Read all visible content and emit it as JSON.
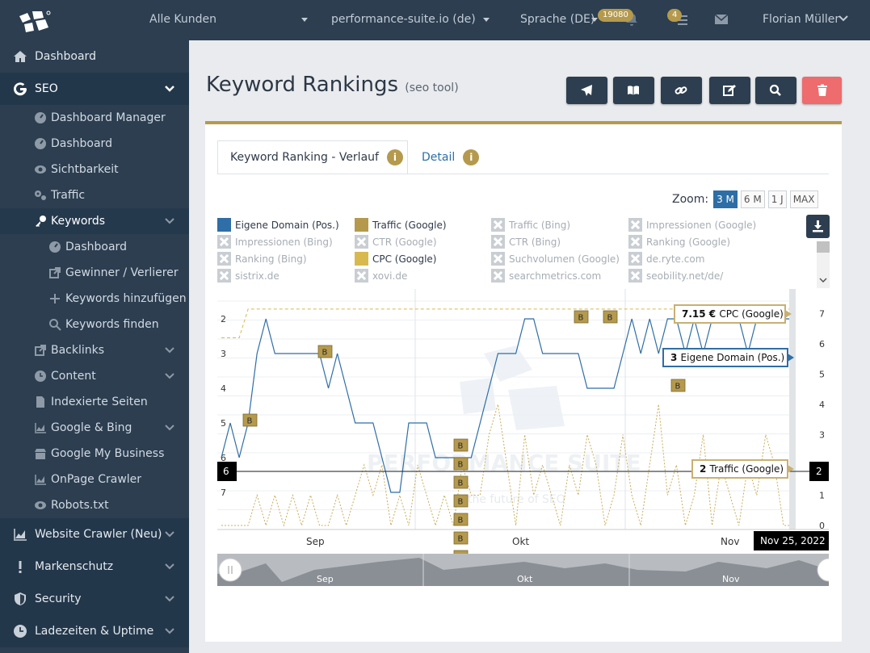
{
  "topbar": {
    "customer_select": "Alle Kunden",
    "project_select": "performance-suite.io (de)",
    "language": "Sprache (DE)",
    "notif_count": "19080",
    "tasks_count": "4",
    "user": "Florian Müller"
  },
  "sidebar": {
    "dashboard": "Dashboard",
    "seo": "SEO",
    "seo_items": [
      "Dashboard Manager",
      "Dashboard",
      "Sichtbarkeit",
      "Traffic",
      "Keywords"
    ],
    "keywords_items": [
      "Dashboard",
      "Gewinner / Verlierer",
      "Keywords hinzufügen",
      "Keywords finden"
    ],
    "more_items": [
      "Backlinks",
      "Content",
      "Indexierte Seiten",
      "Google & Bing",
      "Google My Business",
      "OnPage Crawler",
      "Robots.txt"
    ],
    "sections": [
      "Website Crawler (Neu)",
      "Markenschutz",
      "Security",
      "Ladezeiten & Uptime"
    ]
  },
  "page": {
    "title": "Keyword Rankings",
    "subtitle": "(seo tool)"
  },
  "tabs": {
    "verlauf": "Keyword Ranking - Verlauf",
    "detail": "Detail",
    "info": "i"
  },
  "zoom": {
    "label": "Zoom:",
    "options": [
      "3 M",
      "6 M",
      "1 J",
      "MAX"
    ],
    "selected": "3 M"
  },
  "legend": [
    {
      "label": "Eigene Domain (Pos.)",
      "enabled": true,
      "color": "#2f6ea6"
    },
    {
      "label": "Traffic (Google)",
      "enabled": true,
      "color": "#b59a4d"
    },
    {
      "label": "Traffic (Bing)",
      "enabled": false
    },
    {
      "label": "Impressionen (Google)",
      "enabled": false
    },
    {
      "label": "Impressionen (Bing)",
      "enabled": false
    },
    {
      "label": "CTR (Google)",
      "enabled": false
    },
    {
      "label": "CTR (Bing)",
      "enabled": false
    },
    {
      "label": "Ranking (Google)",
      "enabled": false
    },
    {
      "label": "Ranking (Bing)",
      "enabled": false
    },
    {
      "label": "CPC (Google)",
      "enabled": true,
      "color": "#d8b94e"
    },
    {
      "label": "Suchvolumen (Google)",
      "enabled": false
    },
    {
      "label": "de.ryte.com",
      "enabled": false
    },
    {
      "label": "sistrix.de",
      "enabled": false
    },
    {
      "label": "xovi.de",
      "enabled": false
    },
    {
      "label": "searchmetrics.com",
      "enabled": false
    },
    {
      "label": "seobility.net/de/",
      "enabled": false
    }
  ],
  "chart_data": {
    "type": "line",
    "x_labels": [
      "Sep",
      "Okt",
      "Nov"
    ],
    "left_axis": {
      "ticks": [
        "2",
        "3",
        "4",
        "5",
        "6",
        "7"
      ],
      "reversed": true
    },
    "right_axis": {
      "ticks": [
        "0",
        "1",
        "2",
        "3",
        "4",
        "5",
        "6",
        "7"
      ]
    },
    "series": [
      {
        "name": "Eigene Domain (Pos.)",
        "values": [
          6,
          5,
          6,
          5,
          3,
          2,
          3,
          3,
          3,
          3,
          3,
          3,
          4,
          3,
          4,
          5,
          5,
          5,
          6,
          7,
          7,
          5,
          5,
          5,
          6,
          6,
          6,
          6,
          6,
          5,
          4,
          3,
          3,
          3,
          2,
          2,
          3,
          3,
          3,
          3,
          3,
          4,
          4,
          4,
          4,
          3,
          2,
          3,
          2,
          3,
          2,
          2,
          3,
          2,
          3,
          2,
          2,
          2,
          2,
          3,
          2,
          2,
          2,
          2,
          2
        ]
      },
      {
        "name": "Traffic (Google)",
        "values": [
          0,
          0,
          0,
          0,
          1,
          0,
          1,
          0,
          1,
          0,
          1,
          0,
          0,
          1,
          0,
          1,
          2,
          1,
          2,
          0,
          1,
          0,
          2,
          1,
          0,
          1,
          0,
          2,
          1,
          1,
          3,
          4,
          2,
          0,
          3,
          1,
          2,
          1,
          0,
          2,
          1,
          3,
          2,
          0,
          1,
          3,
          1,
          0,
          2,
          4,
          1,
          2,
          0,
          1,
          3,
          0,
          2,
          1,
          0,
          2,
          1,
          3,
          2,
          0,
          0
        ]
      },
      {
        "name": "CPC (Google)",
        "values": [
          6.2,
          6.2,
          6.2,
          7.15,
          7.15,
          7.15,
          7.15,
          7.15,
          7.15,
          7.15,
          7.15,
          7.15,
          7.15,
          7.15,
          7.15,
          7.15,
          7.15,
          7.15,
          7.15,
          7.15,
          7.15,
          7.15,
          7.15,
          7.15,
          7.15,
          7.15,
          7.15,
          7.15,
          7.15,
          7.15,
          7.15,
          7.15,
          7.15,
          7.15,
          7.15,
          7.15,
          7.15,
          7.15,
          7.15,
          7.15,
          7.15,
          7.15,
          7.15,
          7.15,
          7.15,
          7.15,
          7.15,
          7.15,
          7.15,
          7.15,
          7.15,
          7.15,
          7.15,
          7.15,
          7.15,
          7.15,
          7.15,
          7.15,
          7.15,
          7.15,
          7.15,
          7.15,
          7.15,
          7.15,
          7.15
        ]
      }
    ],
    "tooltips": {
      "cpc": {
        "value": "7.15 €",
        "label": "CPC (Google)"
      },
      "domain": {
        "value": "3",
        "label": "Eigene Domain (Pos.)"
      },
      "traffic": {
        "value": "2",
        "label": "Traffic (Google)"
      }
    },
    "crosshair": {
      "left_value": "6",
      "right_value": "2",
      "date": "Nov 25, 2022"
    },
    "watermark": {
      "brand": "Performance Suite",
      "tagline": "the future of SEO"
    },
    "flag_label": "B"
  },
  "navigator": {
    "labels": [
      "Sep",
      "Okt",
      "Nov"
    ]
  },
  "colors": {
    "brand_gold": "#b59a4d",
    "navy": "#2c3e50",
    "danger": "#ee6b6e",
    "blue": "#2f6ea6"
  }
}
